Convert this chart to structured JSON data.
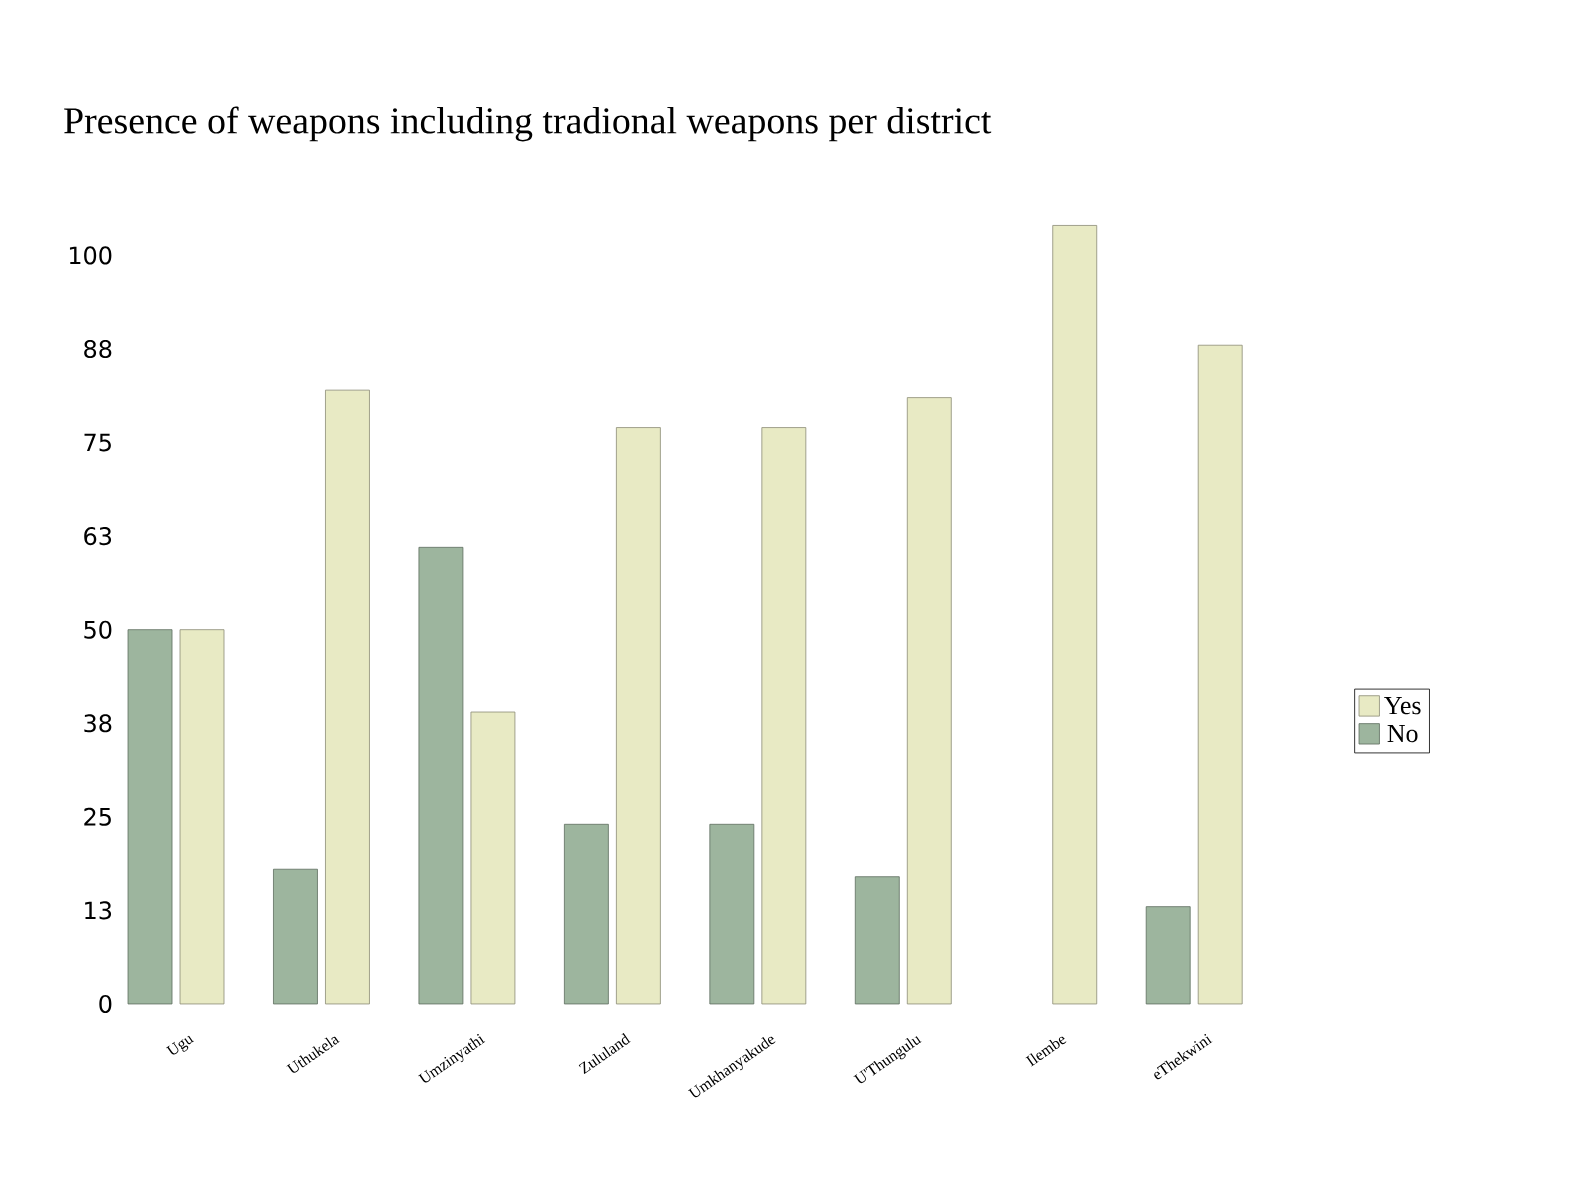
{
  "chart_data": {
    "type": "bar",
    "title": "Presence  of weapons including tradional weapons per  district",
    "categories": [
      "Ugu",
      "Uthukela",
      "Umzinyathi",
      "Zululand",
      "Umkhanyakude",
      "U'Thungulu",
      "Ilembe",
      "eThekwini"
    ],
    "series": [
      {
        "name": "No",
        "color": "#9db59e",
        "values": [
          50,
          18,
          61,
          24,
          24,
          17,
          null,
          13
        ]
      },
      {
        "name": "Yes",
        "color": "#e8eac4",
        "values": [
          50,
          82,
          39,
          77,
          77,
          81,
          104,
          88
        ]
      }
    ],
    "ylim": [
      0,
      105
    ],
    "yticks": [
      0,
      {
        "value": 12.5,
        "label": "13"
      },
      25,
      {
        "value": 37.5,
        "label": "38"
      },
      50,
      {
        "value": 62.5,
        "label": "63"
      },
      75,
      {
        "value": 87.5,
        "label": "88"
      },
      100
    ],
    "legend": "right"
  }
}
